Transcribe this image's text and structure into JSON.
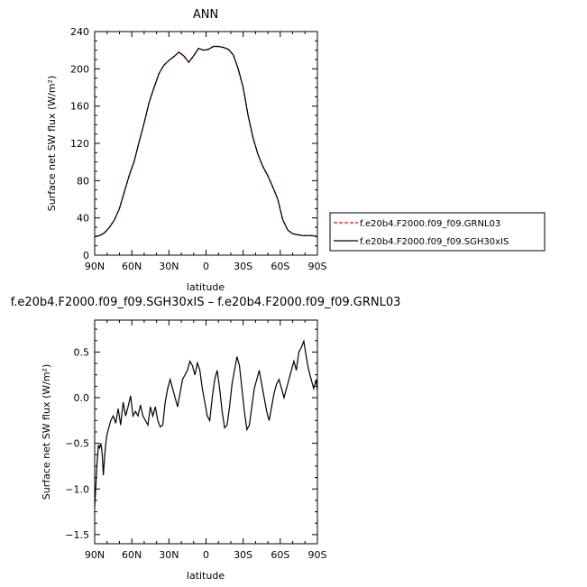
{
  "chart_data": [
    {
      "type": "line",
      "title": "ANN",
      "xlabel": "latitude",
      "ylabel": "Surface net SW flux (W/m²)",
      "x_tick_labels": [
        "90N",
        "60N",
        "30N",
        "0",
        "30S",
        "60S",
        "90S"
      ],
      "x_tick_values": [
        90,
        60,
        30,
        0,
        -30,
        -60,
        -90
      ],
      "xlim": [
        90,
        -90
      ],
      "ylim": [
        0,
        240
      ],
      "y_ticks": [
        0,
        40,
        80,
        120,
        160,
        200,
        240
      ],
      "legend_position": "right",
      "series": [
        {
          "name": "f.e20b4.F2000.f09_f09.GRNL03",
          "color": "#ff0000",
          "dash": "dashed",
          "x": [
            90,
            86,
            82,
            78,
            74,
            70,
            66,
            62,
            58,
            54,
            50,
            46,
            42,
            38,
            34,
            30,
            26,
            22,
            18,
            14,
            10,
            6,
            2,
            -2,
            -6,
            -10,
            -14,
            -18,
            -22,
            -26,
            -30,
            -34,
            -38,
            -42,
            -46,
            -50,
            -54,
            -58,
            -62,
            -66,
            -70,
            -74,
            -78,
            -82,
            -86,
            -90
          ],
          "y": [
            20,
            21,
            24,
            30,
            38,
            50,
            68,
            86,
            101,
            122,
            142,
            164,
            180,
            195,
            204,
            209,
            213,
            218,
            214,
            207,
            214,
            222,
            220,
            221,
            224,
            224,
            223,
            221,
            215,
            200,
            180,
            150,
            126,
            108,
            95,
            85,
            73,
            60,
            38,
            27,
            23,
            22,
            21,
            21,
            21,
            20
          ]
        },
        {
          "name": "f.e20b4.F2000.f09_f09.SGH30xIS",
          "color": "#000000",
          "dash": "solid",
          "x": [
            90,
            86,
            82,
            78,
            74,
            70,
            66,
            62,
            58,
            54,
            50,
            46,
            42,
            38,
            34,
            30,
            26,
            22,
            18,
            14,
            10,
            6,
            2,
            -2,
            -6,
            -10,
            -14,
            -18,
            -22,
            -26,
            -30,
            -34,
            -38,
            -42,
            -46,
            -50,
            -54,
            -58,
            -62,
            -66,
            -70,
            -74,
            -78,
            -82,
            -86,
            -90
          ],
          "y": [
            20,
            21,
            24,
            30,
            38,
            50,
            68,
            86,
            101,
            122,
            142,
            164,
            180,
            195,
            204,
            209,
            213,
            218,
            214,
            207,
            214,
            222,
            220,
            221,
            224,
            224,
            223,
            221,
            215,
            200,
            180,
            150,
            126,
            108,
            95,
            85,
            73,
            60,
            38,
            27,
            23,
            22,
            21,
            21,
            21,
            20
          ]
        }
      ]
    },
    {
      "type": "line",
      "title": "f.e20b4.F2000.f09_f09.SGH30xIS – f.e20b4.F2000.f09_f09.GRNL03",
      "xlabel": "latitude",
      "ylabel": "Surface net SW flux (W/m²)",
      "x_tick_labels": [
        "90N",
        "60N",
        "30N",
        "0",
        "30S",
        "60S",
        "90S"
      ],
      "x_tick_values": [
        90,
        60,
        30,
        0,
        -30,
        -60,
        -90
      ],
      "xlim": [
        90,
        -90
      ],
      "ylim": [
        -1.6,
        0.85
      ],
      "y_ticks": [
        -1.5,
        -1.0,
        -0.5,
        0.0,
        0.5
      ],
      "y_tick_labels": [
        "−1.5",
        "−1.0",
        "−0.5",
        "0.0",
        "0.5"
      ],
      "series": [
        {
          "color": "#000000",
          "x": [
            90,
            89,
            88,
            87,
            86,
            85,
            84,
            83,
            82,
            81,
            80,
            79,
            77,
            75,
            73,
            71,
            69,
            67,
            65,
            63,
            61,
            59,
            57,
            55,
            53,
            51,
            49,
            47,
            45,
            43,
            41,
            39,
            37,
            35,
            33,
            31,
            29,
            27,
            25,
            23,
            21,
            19,
            17,
            15,
            13,
            11,
            9,
            7,
            5,
            3,
            1,
            -1,
            -3,
            -5,
            -7,
            -9,
            -11,
            -13,
            -15,
            -17,
            -19,
            -21,
            -23,
            -25,
            -27,
            -29,
            -31,
            -33,
            -35,
            -37,
            -39,
            -41,
            -43,
            -45,
            -47,
            -49,
            -51,
            -53,
            -55,
            -57,
            -59,
            -61,
            -63,
            -65,
            -67,
            -69,
            -71,
            -73,
            -75,
            -77,
            -79,
            -81,
            -83,
            -85,
            -87,
            -89,
            -90
          ],
          "y": [
            -1.2,
            -0.95,
            -0.7,
            -0.52,
            -0.55,
            -0.5,
            -0.6,
            -0.85,
            -0.65,
            -0.5,
            -0.4,
            -0.35,
            -0.25,
            -0.2,
            -0.28,
            -0.12,
            -0.3,
            -0.05,
            -0.2,
            -0.1,
            0.02,
            -0.2,
            -0.15,
            -0.2,
            -0.08,
            -0.2,
            -0.25,
            -0.3,
            -0.1,
            -0.2,
            -0.1,
            -0.25,
            -0.32,
            -0.3,
            -0.05,
            0.1,
            0.2,
            0.1,
            0.0,
            -0.1,
            0.05,
            0.2,
            0.25,
            0.3,
            0.4,
            0.35,
            0.25,
            0.38,
            0.3,
            0.1,
            -0.05,
            -0.2,
            -0.25,
            0.0,
            0.2,
            0.3,
            0.1,
            -0.15,
            -0.33,
            -0.3,
            -0.1,
            0.15,
            0.3,
            0.45,
            0.35,
            0.1,
            -0.15,
            -0.35,
            -0.3,
            -0.1,
            0.1,
            0.2,
            0.3,
            0.15,
            0.0,
            -0.15,
            -0.25,
            -0.1,
            0.05,
            0.15,
            0.2,
            0.1,
            0.0,
            0.1,
            0.2,
            0.3,
            0.4,
            0.3,
            0.5,
            0.55,
            0.62,
            0.45,
            0.3,
            0.2,
            0.1,
            0.2,
            0.08
          ]
        }
      ]
    }
  ]
}
